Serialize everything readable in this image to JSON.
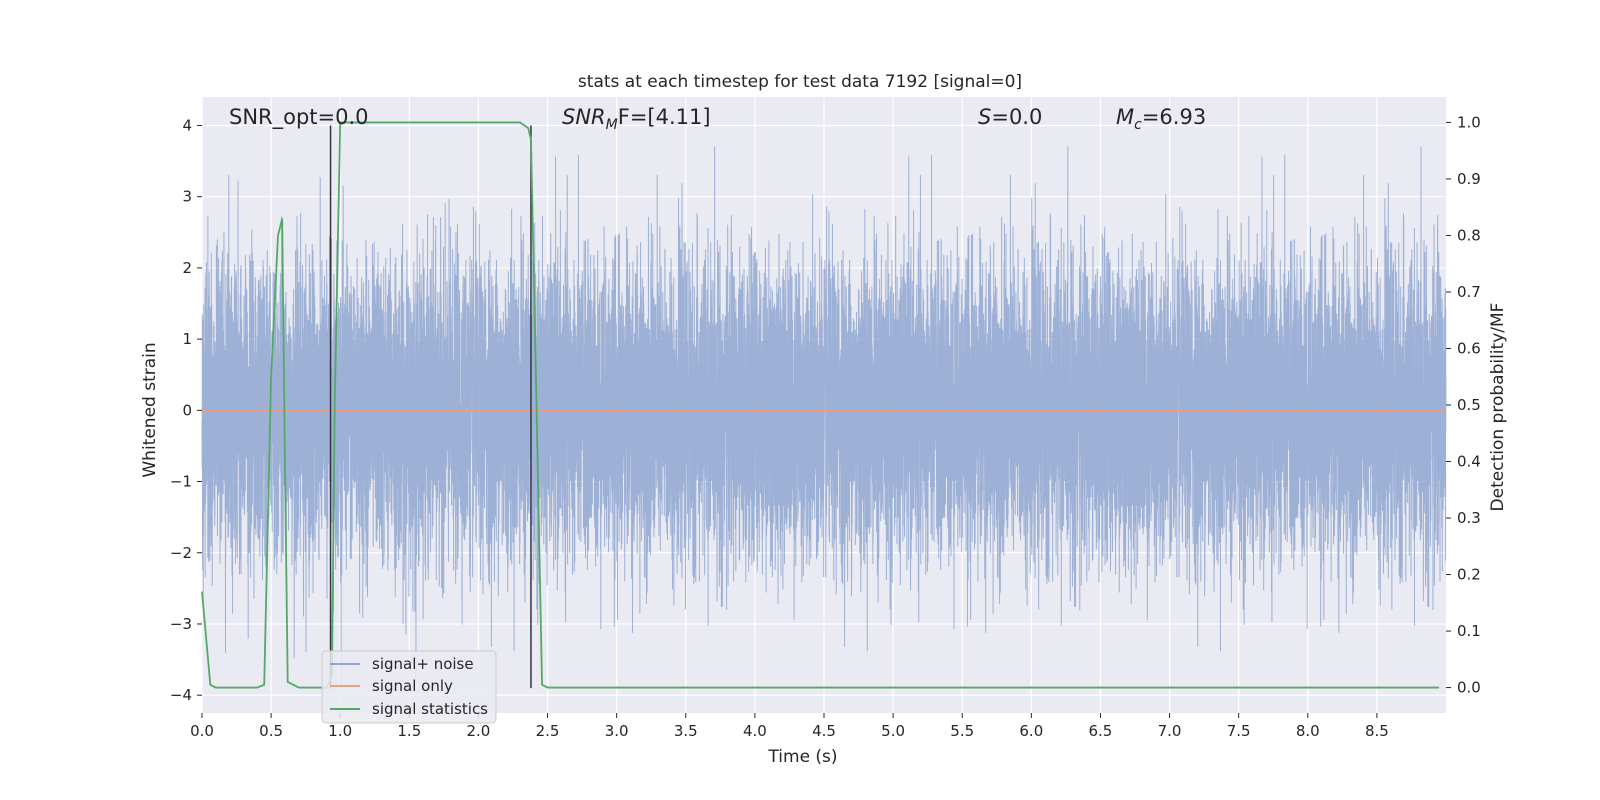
{
  "chart_data": {
    "type": "line",
    "title": "stats at each timestep for test data 7192 [signal=0]",
    "xlabel": "Time (s)",
    "ylabel_left": "Whitened strain",
    "ylabel_right": "Detection probability/MF",
    "xlim": [
      0.0,
      9.0
    ],
    "ylim_left": [
      -4.25,
      4.4
    ],
    "ylim_right": [
      -0.045,
      1.045
    ],
    "x_ticks": [
      0.0,
      0.5,
      1.0,
      1.5,
      2.0,
      2.5,
      3.0,
      3.5,
      4.0,
      4.5,
      5.0,
      5.5,
      6.0,
      6.5,
      7.0,
      7.5,
      8.0,
      8.5
    ],
    "x_tick_labels": [
      "0.0",
      "0.5",
      "1.0",
      "1.5",
      "2.0",
      "2.5",
      "3.0",
      "3.5",
      "4.0",
      "4.5",
      "5.0",
      "5.5",
      "6.0",
      "6.5",
      "7.0",
      "7.5",
      "8.0",
      "8.5"
    ],
    "y_left_ticks": [
      -4,
      -3,
      -2,
      -1,
      0,
      1,
      2,
      3,
      4
    ],
    "y_left_tick_labels": [
      "−4",
      "−3",
      "−2",
      "−1",
      "0",
      "1",
      "2",
      "3",
      "4"
    ],
    "y_right_ticks": [
      0.0,
      0.1,
      0.2,
      0.3,
      0.4,
      0.5,
      0.6,
      0.7,
      0.8,
      0.9,
      1.0
    ],
    "y_right_tick_labels": [
      "0.0",
      "0.1",
      "0.2",
      "0.3",
      "0.4",
      "0.5",
      "0.6",
      "0.7",
      "0.8",
      "0.9",
      "1.0"
    ],
    "grid": true,
    "legend_placement": "lower-left",
    "annotations": {
      "snr_opt_label": "SNR_opt=0.0",
      "snr_mf_base": "SNR",
      "snr_mf_sub": "M",
      "snr_mf_rest": "F=[4.11]",
      "s_symbol": "S",
      "s_value": "=0.0",
      "mc_base": "M",
      "mc_sub": "c",
      "mc_value": "=6.93"
    },
    "series": [
      {
        "name": "signal+ noise",
        "color": "#8fa6d0",
        "axis": "left",
        "description_range": [
          -3.9,
          3.7
        ],
        "sample_rate_hz": 2048,
        "noise_seed": 7192
      },
      {
        "name": "signal only",
        "color": "#e8a184",
        "axis": "left",
        "x": [
          0.0,
          9.0
        ],
        "y": [
          0.0,
          0.0
        ]
      },
      {
        "name": "signal statistics",
        "color": "#55a868",
        "axis": "right",
        "x": [
          0.0,
          0.06,
          0.1,
          0.4,
          0.45,
          0.5,
          0.55,
          0.58,
          0.6,
          0.62,
          0.7,
          0.9,
          0.94,
          0.96,
          1.0,
          2.3,
          2.36,
          2.38,
          2.42,
          2.46,
          2.5,
          8.95
        ],
        "y": [
          0.17,
          0.005,
          0.0,
          0.0,
          0.005,
          0.55,
          0.8,
          0.83,
          0.4,
          0.01,
          0.0,
          0.0,
          0.02,
          0.5,
          1.0,
          1.0,
          0.99,
          0.97,
          0.5,
          0.005,
          0.0,
          0.0
        ]
      }
    ],
    "vertical_markers": [
      {
        "x": 0.93,
        "y_from": -3.9,
        "y_to": 4.0,
        "color": "#333344"
      },
      {
        "x": 2.38,
        "y_from": -3.9,
        "y_to": 4.0,
        "color": "#333344"
      }
    ]
  }
}
